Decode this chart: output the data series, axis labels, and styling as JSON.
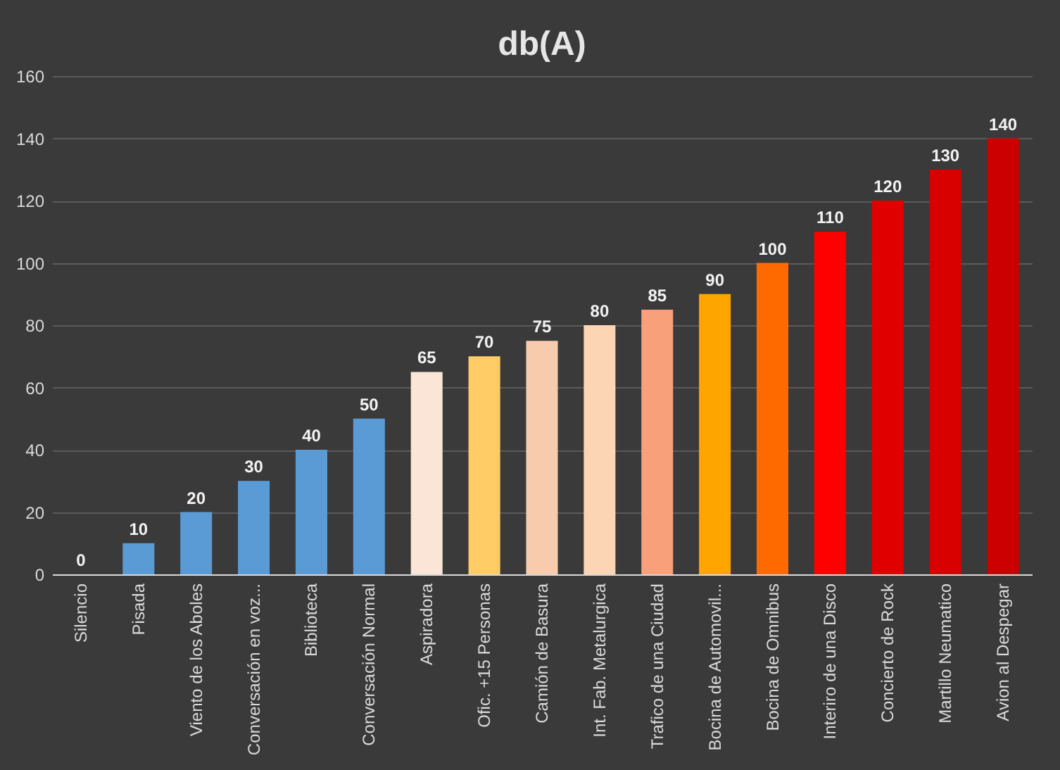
{
  "chart_data": {
    "type": "bar",
    "title": "db(A)",
    "categories": [
      "Silencio",
      "Pisada",
      "Viento de los Aboles",
      "Conversación en voz...",
      "Biblioteca",
      "Conversación Normal",
      "Aspiradora",
      "Ofic. +15 Personas",
      "Camión de Basura",
      "Int. Fab. Metalurgica",
      "Trafico de una Ciudad",
      "Bocina de Automovil...",
      "Bocina de Omnibus",
      "Interiro de una Disco",
      "Concierto de Rock",
      "Martillo Neumatico",
      "Avion al Despegar"
    ],
    "values": [
      0,
      10,
      20,
      30,
      40,
      50,
      65,
      70,
      75,
      80,
      85,
      90,
      100,
      110,
      120,
      130,
      140
    ],
    "colors": [
      "#5b9bd5",
      "#5b9bd5",
      "#5b9bd5",
      "#5b9bd5",
      "#5b9bd5",
      "#5b9bd5",
      "#fbe5d6",
      "#ffcc66",
      "#f8cbad",
      "#fcd5b4",
      "#f7a07a",
      "#ffa500",
      "#ff6a00",
      "#ff0000",
      "#e00000",
      "#d90000",
      "#cc0000"
    ],
    "ylim": [
      0,
      160
    ],
    "yticks": [
      0,
      20,
      40,
      60,
      80,
      100,
      120,
      140,
      160
    ],
    "grid": "y",
    "data_labels": true
  }
}
